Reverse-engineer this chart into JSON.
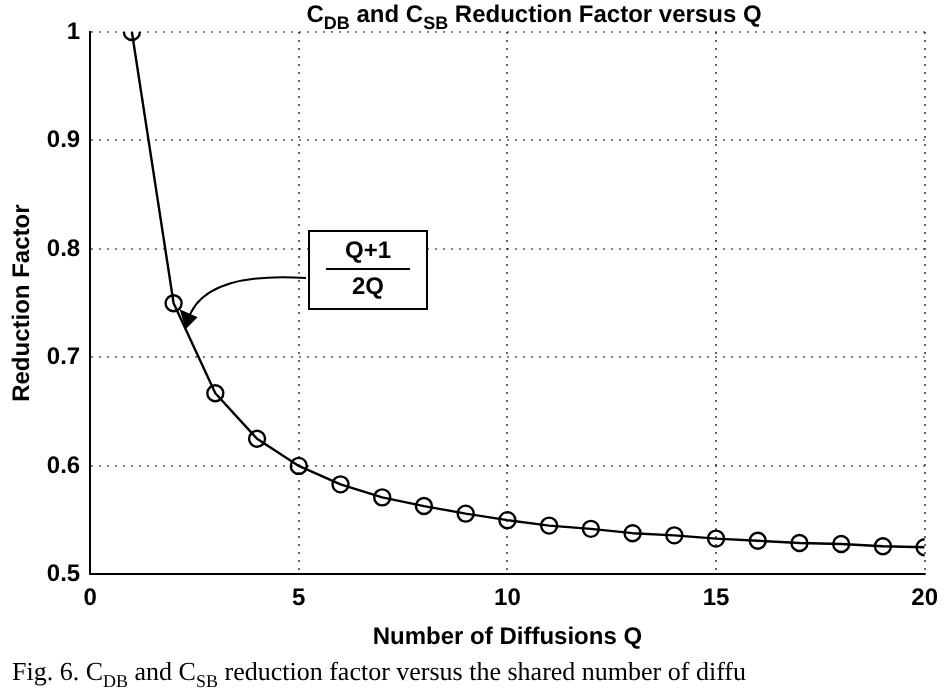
{
  "chart_data": {
    "type": "line",
    "title": "C$_{DB}$ and C$_{SB}$ Reduction Factor versus Q",
    "xlabel": "Number of Diffusions Q",
    "ylabel": "Reduction Factor",
    "x": [
      1,
      2,
      3,
      4,
      5,
      6,
      7,
      8,
      9,
      10,
      11,
      12,
      13,
      14,
      15,
      16,
      17,
      18,
      19,
      20
    ],
    "series": [
      {
        "color": "#000000",
        "values": [
          1,
          0.75,
          0.667,
          0.625,
          0.6,
          0.583,
          0.571,
          0.563,
          0.556,
          0.55,
          0.545,
          0.542,
          0.538,
          0.536,
          0.533,
          0.531,
          0.529,
          0.528,
          0.526,
          0.525
        ]
      }
    ],
    "xlim": [
      0,
      20
    ],
    "xticks": [
      0,
      5,
      10,
      15,
      20
    ],
    "ylim": [
      0.5,
      1
    ],
    "yticks": [
      0.5,
      0.6,
      0.7,
      0.8,
      0.9,
      1
    ],
    "grid": true,
    "marker": "circle",
    "line_style": "solid",
    "annotations": [
      "Q+1",
      "2Q",
      "Fig. 6.   C$_{DB}$ and C$_{SB}$ reduction factor versus the shared number of diffu"
    ]
  }
}
